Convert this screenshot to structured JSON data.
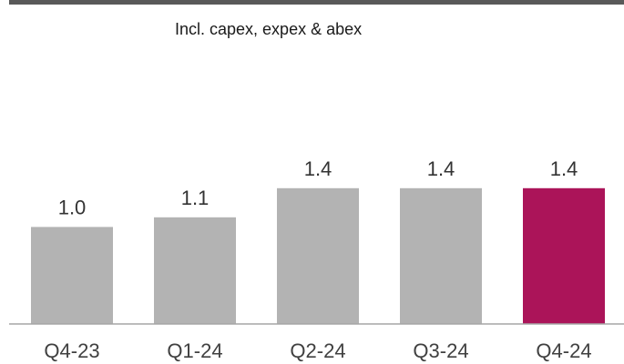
{
  "subtitle": "Incl. capex, expex & abex",
  "colors": {
    "top_rule": "#595959",
    "bar_default": "#b3b3b3",
    "bar_highlight": "#ab1459",
    "baseline": "#a6a6a6"
  },
  "chart_data": {
    "type": "bar",
    "title": "",
    "subtitle": "Incl. capex, expex & abex",
    "xlabel": "",
    "ylabel": "",
    "categories": [
      "Q4-23",
      "Q1-24",
      "Q2-24",
      "Q3-24",
      "Q4-24"
    ],
    "values": [
      1.0,
      1.1,
      1.4,
      1.4,
      1.4
    ],
    "value_labels": [
      "1.0",
      "1.1",
      "1.4",
      "1.4",
      "1.4"
    ],
    "highlight_index": 4,
    "ylim": [
      0,
      3.34
    ],
    "grid": false,
    "legend": "none"
  }
}
